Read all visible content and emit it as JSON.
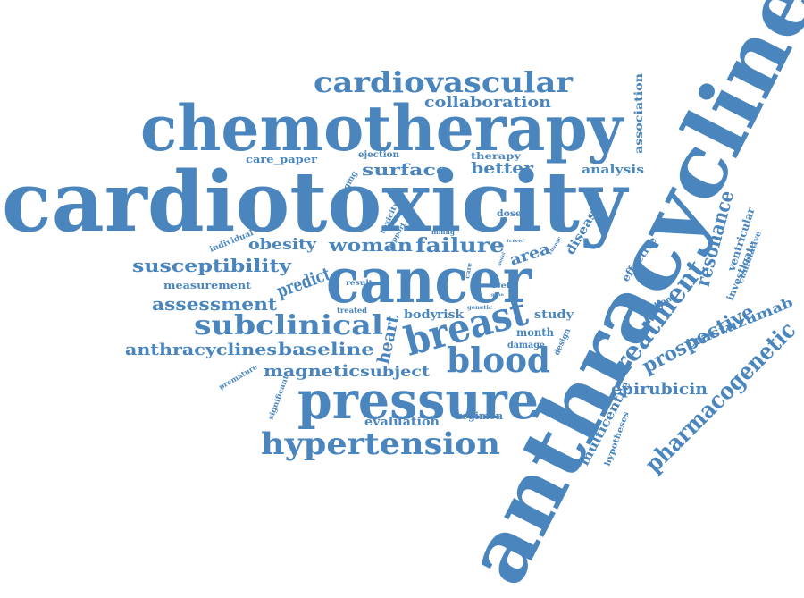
{
  "cloud": {
    "color": "#4a86bd",
    "words": [
      {
        "id": "cardiotoxicity",
        "text": "cardiotoxicity"
      },
      {
        "id": "anthracycline",
        "text": "anthracycline"
      },
      {
        "id": "chemotherapy",
        "text": "chemotherapy"
      },
      {
        "id": "cancer",
        "text": "cancer"
      },
      {
        "id": "pressure",
        "text": "pressure"
      },
      {
        "id": "hypertension",
        "text": "hypertension"
      },
      {
        "id": "breast",
        "text": "breast"
      },
      {
        "id": "blood",
        "text": "blood"
      },
      {
        "id": "cardiovascular",
        "text": "cardiovascular"
      },
      {
        "id": "subclinical",
        "text": "subclinical"
      },
      {
        "id": "treatment",
        "text": "treatment"
      },
      {
        "id": "pharmacogenetic",
        "text": "pharmacogenetic"
      },
      {
        "id": "prospective",
        "text": "prospective"
      },
      {
        "id": "resonance",
        "text": "resonance"
      },
      {
        "id": "collaboration",
        "text": "collaboration"
      },
      {
        "id": "woman",
        "text": "woman"
      },
      {
        "id": "failure",
        "text": "failure"
      },
      {
        "id": "susceptibility",
        "text": "susceptibility"
      },
      {
        "id": "assessment",
        "text": "assessment"
      },
      {
        "id": "predict",
        "text": "predict"
      },
      {
        "id": "anthracyclines",
        "text": "anthracyclines"
      },
      {
        "id": "baseline",
        "text": "baseline"
      },
      {
        "id": "magnetic",
        "text": "magnetic"
      },
      {
        "id": "subject",
        "text": "subject"
      },
      {
        "id": "heart",
        "text": "heart"
      },
      {
        "id": "epirubicin",
        "text": "epirubicin"
      },
      {
        "id": "trastuzumab",
        "text": "trastuzumab"
      },
      {
        "id": "multicentre",
        "text": "multicentre"
      },
      {
        "id": "surface",
        "text": "surface"
      },
      {
        "id": "better",
        "text": "better"
      },
      {
        "id": "obesity",
        "text": "obesity"
      },
      {
        "id": "area",
        "text": "area"
      },
      {
        "id": "disease",
        "text": "disease"
      },
      {
        "id": "analysis",
        "text": "analysis"
      },
      {
        "id": "association",
        "text": "association"
      },
      {
        "id": "ventricular",
        "text": "ventricular"
      },
      {
        "id": "investigate",
        "text": "investigate"
      },
      {
        "id": "cumulative",
        "text": "cumulative"
      },
      {
        "id": "effective",
        "text": "effective"
      },
      {
        "id": "evaluation",
        "text": "evaluation"
      },
      {
        "id": "regimen",
        "text": "regimen"
      },
      {
        "id": "body",
        "text": "body"
      },
      {
        "id": "risk",
        "text": "risk"
      },
      {
        "id": "study",
        "text": "study"
      },
      {
        "id": "month",
        "text": "month"
      },
      {
        "id": "damage",
        "text": "damage"
      },
      {
        "id": "design",
        "text": "design"
      },
      {
        "id": "hypotheses",
        "text": "hypotheses"
      },
      {
        "id": "fraction",
        "text": "fraction"
      },
      {
        "id": "measurement",
        "text": "measurement"
      },
      {
        "id": "individual",
        "text": "individual"
      },
      {
        "id": "care_paper",
        "text": "care_paper"
      },
      {
        "id": "ejection",
        "text": "ejection"
      },
      {
        "id": "therapy",
        "text": "therapy"
      },
      {
        "id": "imaging",
        "text": "imaging"
      },
      {
        "id": "dose",
        "text": "dose"
      },
      {
        "id": "toxicity",
        "text": "toxicity"
      },
      {
        "id": "support",
        "text": "support"
      },
      {
        "id": "mmhg",
        "text": "mmhg"
      },
      {
        "id": "result",
        "text": "result"
      },
      {
        "id": "treated",
        "text": "treated"
      },
      {
        "id": "lvef",
        "text": "lvef"
      },
      {
        "id": "genetic",
        "text": "genetic"
      },
      {
        "id": "premature",
        "text": "premature"
      },
      {
        "id": "significant",
        "text": "significant"
      },
      {
        "id": "fcfvef",
        "text": "fcfvef"
      },
      {
        "id": "change",
        "text": "change"
      },
      {
        "id": "model",
        "text": "model"
      },
      {
        "id": "care",
        "text": "care"
      },
      {
        "id": "gene",
        "text": "gene"
      }
    ]
  }
}
